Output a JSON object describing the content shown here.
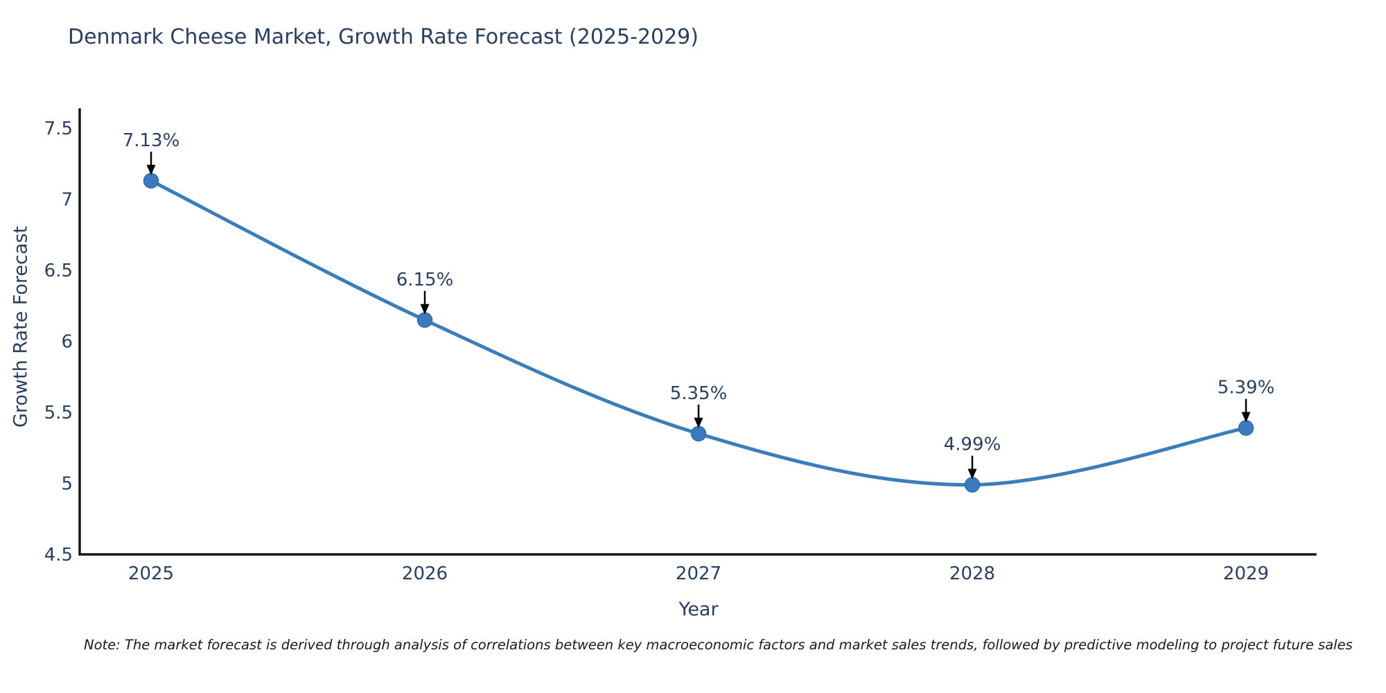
{
  "note": "Note: The market forecast is derived through analysis of correlations between key macroeconomic factors and market sales trends, followed by predictive modeling to project future sales",
  "chart_data": {
    "type": "line",
    "title": "Denmark Cheese Market, Growth Rate Forecast (2025-2029)",
    "xlabel": "Year",
    "ylabel": "Growth Rate Forecast",
    "categories": [
      "2025",
      "2026",
      "2027",
      "2028",
      "2029"
    ],
    "values": [
      7.13,
      6.15,
      5.35,
      4.99,
      5.39
    ],
    "point_labels": [
      "7.13%",
      "6.15%",
      "5.35%",
      "4.99%",
      "5.39%"
    ],
    "ylim": [
      4.5,
      7.5
    ],
    "y_ticks": [
      4.5,
      5,
      5.5,
      6,
      6.5,
      7,
      7.5
    ],
    "y_tick_labels": [
      "4.5",
      "5",
      "5.5",
      "6",
      "6.5",
      "7",
      "7.5"
    ],
    "grid": false,
    "legend": "none",
    "line_shape": "spline",
    "annotation_arrows": "down",
    "colors": {
      "line": "#3b7cba",
      "marker": "#3a7abd",
      "marker_edge": "#2e6dab",
      "axis": "#161616",
      "tick_text": "#2a3f5f",
      "annotation_text": "#2a3f5f",
      "annotation_arrow": "#000000",
      "title_text": "#2a3f5f"
    }
  }
}
